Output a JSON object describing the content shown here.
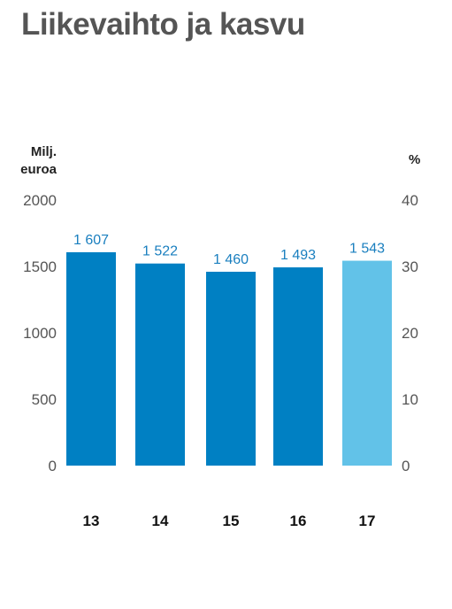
{
  "chart_data": {
    "type": "bar",
    "title": "Liikevaihto ja kasvu",
    "categories": [
      "13",
      "14",
      "15",
      "16",
      "17"
    ],
    "values": [
      1607,
      1522,
      1460,
      1493,
      1543
    ],
    "value_labels": [
      "1 607",
      "1 522",
      "1 460",
      "1 493",
      "1 543"
    ],
    "ylabel_left": [
      "Milj.",
      "euroa"
    ],
    "ylabel_right": "%",
    "ylim": [
      0,
      2000
    ],
    "y2lim": [
      0,
      40
    ],
    "yticks": [
      "0",
      "500",
      "1000",
      "1500",
      "2000"
    ],
    "y2ticks": [
      "0",
      "10",
      "20",
      "30",
      "40"
    ],
    "grid": false,
    "colors": {
      "bar": "#0080c3",
      "bar_highlight": "#62c2e8",
      "value_label": "#1a7fbf",
      "tick_label": "#555555",
      "category_label": "#111111"
    },
    "highlight_index": 4
  }
}
